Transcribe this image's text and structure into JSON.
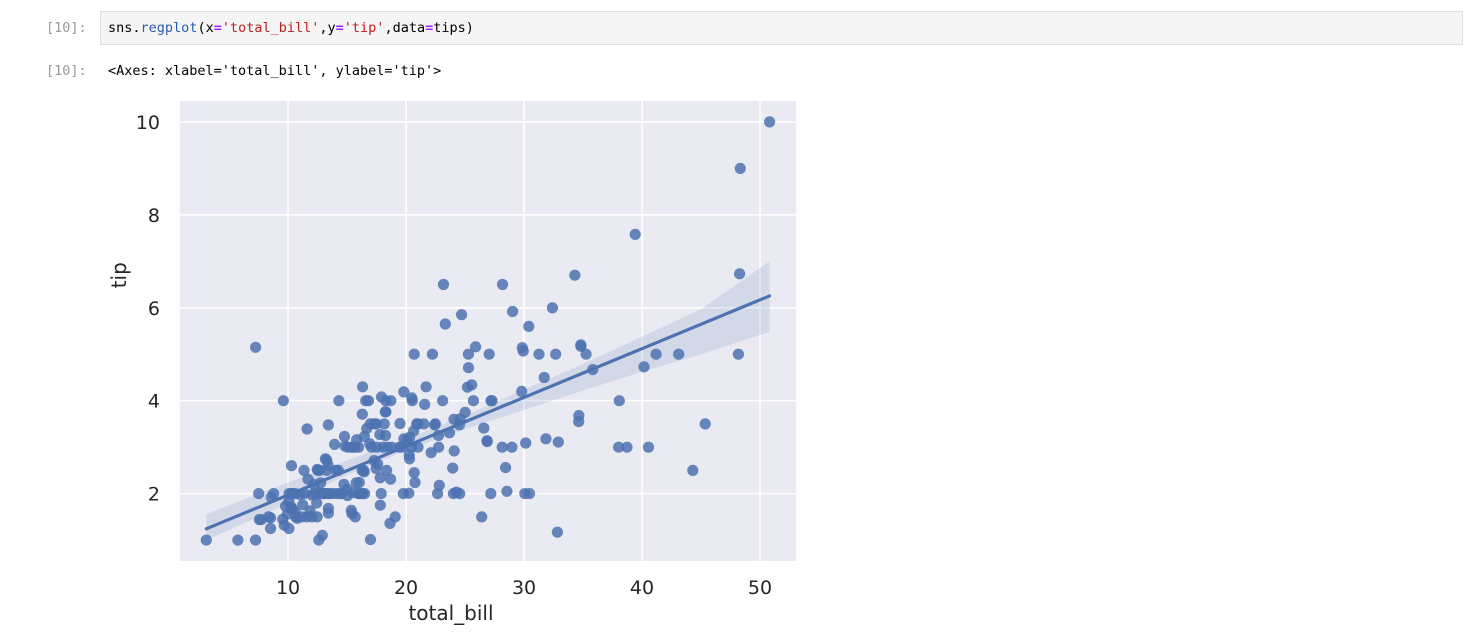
{
  "input_cell": {
    "prompt": "[10]:",
    "code_tokens": [
      {
        "text": "sns",
        "cls": "tok-var"
      },
      {
        "text": ".",
        "cls": "tok-var"
      },
      {
        "text": "regplot",
        "cls": "tok-attr"
      },
      {
        "text": "(x",
        "cls": "tok-var"
      },
      {
        "text": "=",
        "cls": "tok-op"
      },
      {
        "text": "'total_bill'",
        "cls": "tok-str"
      },
      {
        "text": ",y",
        "cls": "tok-var"
      },
      {
        "text": "=",
        "cls": "tok-op"
      },
      {
        "text": "'tip'",
        "cls": "tok-str"
      },
      {
        "text": ",data",
        "cls": "tok-var"
      },
      {
        "text": "=",
        "cls": "tok-op"
      },
      {
        "text": "tips)",
        "cls": "tok-var"
      }
    ]
  },
  "output_cell": {
    "prompt": "[10]:",
    "text": "<Axes: xlabel='total_bill', ylabel='tip'>"
  },
  "colors": {
    "plot_bg": "#eaeaf2",
    "grid": "#ffffff",
    "point": "#4c72b0",
    "line": "#4c72b0",
    "ci_band": "#4c72b0"
  },
  "chart_data": {
    "type": "scatter",
    "xlabel": "total_bill",
    "ylabel": "tip",
    "xlim": [
      0.84,
      53.05
    ],
    "ylim": [
      0.55,
      10.45
    ],
    "xticks": [
      10,
      20,
      30,
      40,
      50
    ],
    "yticks": [
      2,
      4,
      6,
      8,
      10
    ],
    "grid": true,
    "points": [
      [
        3.07,
        1.0
      ],
      [
        5.75,
        1.0
      ],
      [
        7.25,
        1.0
      ],
      [
        7.25,
        5.15
      ],
      [
        7.51,
        2.0
      ],
      [
        7.56,
        1.44
      ],
      [
        7.74,
        1.44
      ],
      [
        8.35,
        1.5
      ],
      [
        8.51,
        1.25
      ],
      [
        8.52,
        1.48
      ],
      [
        8.58,
        1.92
      ],
      [
        8.77,
        2.0
      ],
      [
        9.55,
        1.45
      ],
      [
        9.6,
        4.0
      ],
      [
        9.68,
        1.32
      ],
      [
        9.78,
        1.73
      ],
      [
        9.94,
        1.56
      ],
      [
        10.07,
        1.25
      ],
      [
        10.07,
        1.83
      ],
      [
        10.09,
        2.0
      ],
      [
        10.27,
        1.71
      ],
      [
        10.29,
        2.6
      ],
      [
        10.33,
        1.67
      ],
      [
        10.33,
        2.0
      ],
      [
        10.34,
        1.66
      ],
      [
        10.34,
        2.0
      ],
      [
        10.59,
        1.61
      ],
      [
        10.63,
        2.0
      ],
      [
        10.65,
        1.5
      ],
      [
        10.77,
        1.47
      ],
      [
        11.02,
        1.98
      ],
      [
        11.17,
        1.5
      ],
      [
        11.24,
        1.76
      ],
      [
        11.35,
        2.5
      ],
      [
        11.38,
        2.0
      ],
      [
        11.59,
        1.5
      ],
      [
        11.61,
        3.39
      ],
      [
        11.69,
        2.31
      ],
      [
        11.87,
        1.63
      ],
      [
        12.02,
        1.97
      ],
      [
        12.03,
        1.5
      ],
      [
        12.16,
        2.2
      ],
      [
        12.26,
        2.0
      ],
      [
        12.43,
        1.8
      ],
      [
        12.46,
        1.5
      ],
      [
        12.48,
        2.52
      ],
      [
        12.54,
        2.5
      ],
      [
        12.6,
        1.0
      ],
      [
        12.66,
        2.5
      ],
      [
        12.69,
        2.0
      ],
      [
        12.74,
        2.01
      ],
      [
        12.76,
        2.23
      ],
      [
        12.9,
        1.1
      ],
      [
        13.0,
        2.0
      ],
      [
        13.03,
        2.0
      ],
      [
        13.13,
        2.0
      ],
      [
        13.16,
        2.75
      ],
      [
        13.27,
        2.5
      ],
      [
        13.28,
        2.72
      ],
      [
        13.37,
        2.0
      ],
      [
        13.39,
        2.61
      ],
      [
        13.42,
        3.48
      ],
      [
        13.42,
        1.58
      ],
      [
        13.42,
        1.68
      ],
      [
        13.51,
        2.0
      ],
      [
        13.81,
        2.0
      ],
      [
        13.94,
        3.06
      ],
      [
        14.07,
        2.5
      ],
      [
        14.15,
        2.0
      ],
      [
        14.26,
        2.5
      ],
      [
        14.31,
        4.0
      ],
      [
        14.48,
        2.0
      ],
      [
        14.52,
        2.0
      ],
      [
        14.73,
        2.2
      ],
      [
        14.78,
        3.23
      ],
      [
        14.83,
        3.02
      ],
      [
        15.01,
        2.09
      ],
      [
        15.04,
        1.96
      ],
      [
        15.06,
        3.0
      ],
      [
        15.36,
        1.64
      ],
      [
        15.38,
        3.0
      ],
      [
        15.42,
        1.57
      ],
      [
        15.48,
        2.02
      ],
      [
        15.53,
        3.0
      ],
      [
        15.69,
        1.5
      ],
      [
        15.69,
        3.0
      ],
      [
        15.77,
        2.23
      ],
      [
        15.81,
        3.16
      ],
      [
        15.95,
        2.0
      ],
      [
        15.98,
        3.0
      ],
      [
        16.0,
        2.0
      ],
      [
        16.04,
        2.24
      ],
      [
        16.21,
        2.0
      ],
      [
        16.27,
        2.5
      ],
      [
        16.29,
        3.71
      ],
      [
        16.31,
        2.0
      ],
      [
        16.32,
        4.3
      ],
      [
        16.4,
        2.5
      ],
      [
        16.45,
        2.47
      ],
      [
        16.47,
        3.23
      ],
      [
        16.49,
        2.0
      ],
      [
        16.58,
        4.0
      ],
      [
        16.66,
        3.4
      ],
      [
        16.82,
        4.0
      ],
      [
        16.93,
        3.07
      ],
      [
        16.97,
        3.5
      ],
      [
        16.99,
        1.01
      ],
      [
        17.07,
        3.0
      ],
      [
        17.29,
        2.71
      ],
      [
        17.31,
        3.5
      ],
      [
        17.46,
        2.54
      ],
      [
        17.47,
        3.5
      ],
      [
        17.51,
        3.0
      ],
      [
        17.59,
        2.64
      ],
      [
        17.78,
        3.27
      ],
      [
        17.81,
        2.34
      ],
      [
        17.82,
        1.75
      ],
      [
        17.89,
        2.0
      ],
      [
        17.92,
        4.08
      ],
      [
        18.04,
        3.0
      ],
      [
        18.15,
        3.5
      ],
      [
        18.24,
        3.76
      ],
      [
        18.26,
        3.25
      ],
      [
        18.28,
        4.0
      ],
      [
        18.29,
        3.76
      ],
      [
        18.35,
        2.5
      ],
      [
        18.43,
        3.0
      ],
      [
        18.64,
        1.36
      ],
      [
        18.69,
        2.31
      ],
      [
        18.71,
        4.0
      ],
      [
        18.78,
        3.0
      ],
      [
        19.08,
        1.5
      ],
      [
        19.44,
        3.0
      ],
      [
        19.49,
        3.51
      ],
      [
        19.65,
        3.0
      ],
      [
        19.77,
        2.0
      ],
      [
        19.81,
        4.19
      ],
      [
        19.82,
        3.18
      ],
      [
        20.08,
        3.15
      ],
      [
        20.23,
        2.01
      ],
      [
        20.27,
        2.83
      ],
      [
        20.29,
        3.21
      ],
      [
        20.29,
        2.75
      ],
      [
        20.45,
        3.0
      ],
      [
        20.49,
        4.06
      ],
      [
        20.53,
        4.0
      ],
      [
        20.65,
        3.35
      ],
      [
        20.69,
        2.45
      ],
      [
        20.69,
        5.0
      ],
      [
        20.76,
        2.24
      ],
      [
        20.9,
        3.5
      ],
      [
        21.01,
        3.5
      ],
      [
        21.01,
        3.0
      ],
      [
        21.5,
        3.5
      ],
      [
        21.58,
        3.92
      ],
      [
        21.7,
        4.3
      ],
      [
        22.12,
        2.88
      ],
      [
        22.23,
        5.0
      ],
      [
        22.42,
        3.48
      ],
      [
        22.49,
        3.5
      ],
      [
        22.67,
        2.0
      ],
      [
        22.75,
        3.25
      ],
      [
        22.76,
        3.0
      ],
      [
        22.82,
        2.18
      ],
      [
        23.1,
        4.0
      ],
      [
        23.17,
        6.5
      ],
      [
        23.33,
        5.65
      ],
      [
        23.68,
        3.31
      ],
      [
        23.95,
        2.55
      ],
      [
        24.01,
        2.0
      ],
      [
        24.06,
        3.6
      ],
      [
        24.08,
        2.92
      ],
      [
        24.27,
        2.03
      ],
      [
        24.52,
        3.48
      ],
      [
        24.55,
        2.0
      ],
      [
        24.59,
        3.61
      ],
      [
        24.71,
        5.85
      ],
      [
        25.0,
        3.75
      ],
      [
        25.21,
        4.29
      ],
      [
        25.28,
        5.0
      ],
      [
        25.29,
        4.71
      ],
      [
        25.56,
        4.34
      ],
      [
        25.71,
        4.0
      ],
      [
        25.89,
        5.16
      ],
      [
        26.41,
        1.5
      ],
      [
        26.59,
        3.41
      ],
      [
        26.86,
        3.14
      ],
      [
        26.88,
        3.12
      ],
      [
        27.05,
        5.0
      ],
      [
        27.18,
        2.0
      ],
      [
        27.2,
        4.0
      ],
      [
        27.28,
        4.0
      ],
      [
        28.15,
        3.0
      ],
      [
        28.17,
        6.5
      ],
      [
        28.44,
        2.56
      ],
      [
        28.55,
        2.05
      ],
      [
        28.97,
        3.0
      ],
      [
        29.03,
        5.92
      ],
      [
        29.8,
        4.2
      ],
      [
        29.85,
        5.14
      ],
      [
        29.93,
        5.07
      ],
      [
        30.06,
        2.0
      ],
      [
        30.14,
        3.09
      ],
      [
        30.4,
        5.6
      ],
      [
        30.46,
        2.0
      ],
      [
        31.27,
        5.0
      ],
      [
        31.71,
        4.5
      ],
      [
        31.85,
        3.18
      ],
      [
        32.4,
        6.0
      ],
      [
        32.68,
        5.0
      ],
      [
        32.83,
        1.17
      ],
      [
        32.9,
        3.11
      ],
      [
        34.3,
        6.7
      ],
      [
        34.63,
        3.55
      ],
      [
        34.65,
        3.68
      ],
      [
        34.81,
        5.2
      ],
      [
        34.83,
        5.17
      ],
      [
        35.26,
        5.0
      ],
      [
        35.83,
        4.67
      ],
      [
        38.01,
        3.0
      ],
      [
        38.07,
        4.0
      ],
      [
        38.73,
        3.0
      ],
      [
        39.42,
        7.58
      ],
      [
        40.17,
        4.73
      ],
      [
        40.55,
        3.0
      ],
      [
        41.19,
        5.0
      ],
      [
        43.11,
        5.0
      ],
      [
        44.3,
        2.5
      ],
      [
        45.35,
        3.5
      ],
      [
        48.17,
        5.0
      ],
      [
        48.27,
        6.73
      ],
      [
        48.33,
        9.0
      ],
      [
        50.81,
        10.0
      ]
    ],
    "regression": {
      "intercept": 0.92,
      "slope": 0.105,
      "x_range": [
        3.07,
        50.81
      ]
    },
    "ci_band": {
      "x": [
        3.07,
        10,
        15,
        20,
        25,
        30,
        35,
        40,
        45,
        50.81
      ],
      "lower": [
        1.0,
        1.79,
        2.4,
        2.93,
        3.39,
        3.8,
        4.22,
        4.62,
        5.0,
        5.48
      ],
      "upper": [
        1.56,
        2.24,
        2.71,
        3.18,
        3.68,
        4.24,
        4.79,
        5.38,
        5.97,
        7.0
      ]
    }
  }
}
